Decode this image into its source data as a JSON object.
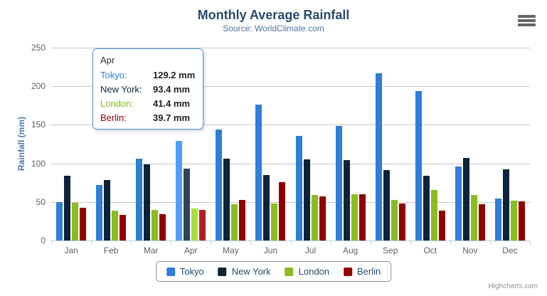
{
  "chart": {
    "title": "Monthly Average Rainfall",
    "subtitle": "Source: WorldClimate.com",
    "credits": "Highcharts.com"
  },
  "icons": {
    "context_menu": "hamburger-menu"
  },
  "chart_data": {
    "type": "bar",
    "title": "Monthly Average Rainfall",
    "subtitle": "Source: WorldClimate.com",
    "categories": [
      "Jan",
      "Feb",
      "Mar",
      "Apr",
      "May",
      "Jun",
      "Jul",
      "Aug",
      "Sep",
      "Oct",
      "Nov",
      "Dec"
    ],
    "series": [
      {
        "name": "Tokyo",
        "color": "#2f7ed8",
        "values": [
          49.9,
          71.5,
          106.4,
          129.2,
          144.0,
          176.0,
          135.6,
          148.5,
          216.4,
          194.1,
          95.6,
          54.4
        ]
      },
      {
        "name": "New York",
        "color": "#0d233a",
        "values": [
          83.6,
          78.8,
          98.5,
          93.4,
          106.0,
          84.5,
          105.0,
          104.3,
          91.2,
          83.5,
          106.6,
          92.3
        ]
      },
      {
        "name": "London",
        "color": "#8bbc21",
        "values": [
          48.9,
          38.8,
          39.3,
          41.4,
          47.0,
          48.3,
          59.0,
          59.6,
          52.4,
          65.2,
          59.3,
          51.2
        ]
      },
      {
        "name": "Berlin",
        "color": "#910000",
        "values": [
          42.4,
          33.2,
          34.5,
          39.7,
          52.6,
          75.5,
          57.4,
          60.4,
          47.6,
          39.1,
          46.8,
          51.1
        ]
      }
    ],
    "xlabel": "",
    "ylabel": "Rainfall (mm)",
    "ylim": [
      0,
      250
    ],
    "ytick_interval": 50,
    "grid": true,
    "legend_position": "bottom",
    "hovered_category": "Apr",
    "value_suffix": "mm"
  },
  "tooltip": {
    "header": "Apr",
    "rows": [
      {
        "name": "Tokyo",
        "value": "129.2 mm"
      },
      {
        "name": "New York",
        "value": "93.4 mm"
      },
      {
        "name": "London",
        "value": "41.4 mm"
      },
      {
        "name": "Berlin",
        "value": "39.7 mm"
      }
    ]
  }
}
